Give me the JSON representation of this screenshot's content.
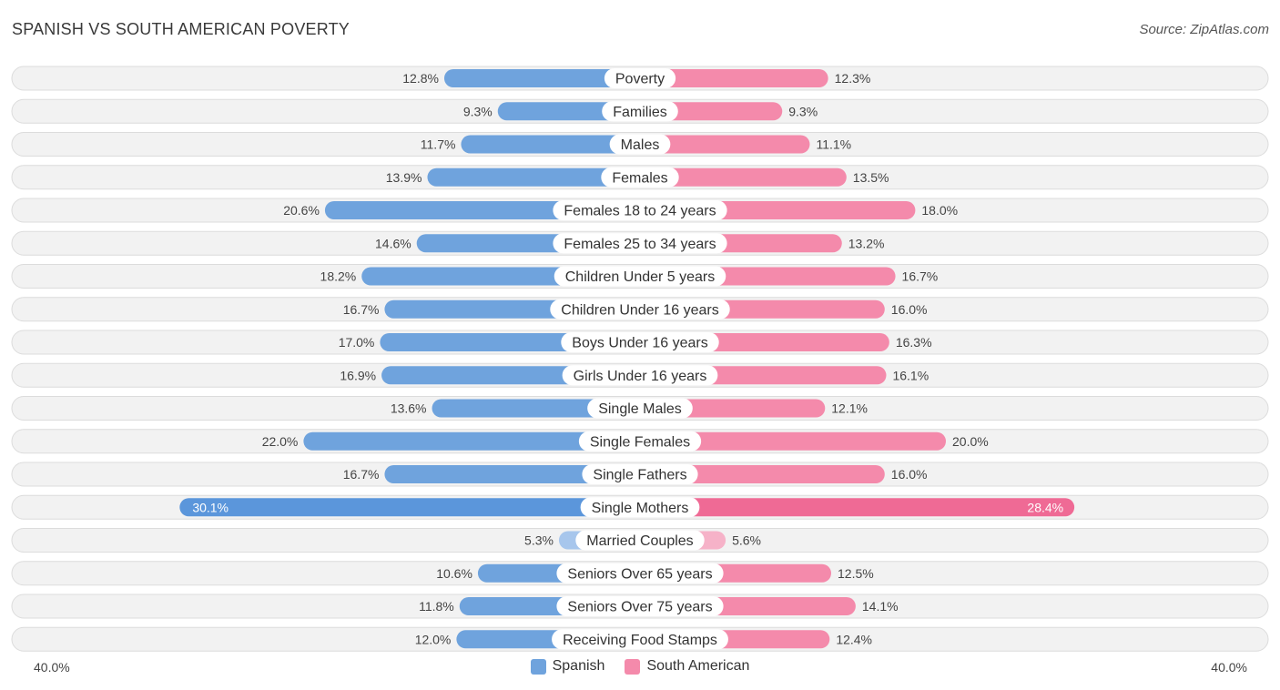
{
  "title": "SPANISH VS SOUTH AMERICAN POVERTY",
  "source": "Source: ZipAtlas.com",
  "colors": {
    "spanish": "#6fa3dd",
    "spanish_light": "#a7c6ec",
    "spanish_strong": "#5b96db",
    "south_american": "#f48aab",
    "south_american_light": "#f6b2c8",
    "south_american_strong": "#ef6a95"
  },
  "legend": {
    "spanish_label": "Spanish",
    "south_american_label": "South American"
  },
  "axis": {
    "left_label": "40.0%",
    "right_label": "40.0%"
  },
  "chart_data": {
    "type": "bar",
    "orientation": "horizontal-diverging",
    "title": "SPANISH VS SOUTH AMERICAN POVERTY",
    "xlim": [
      0,
      40
    ],
    "legend_position": "bottom-center",
    "categories": [
      "Poverty",
      "Families",
      "Males",
      "Females",
      "Females 18 to 24 years",
      "Females 25 to 34 years",
      "Children Under 5 years",
      "Children Under 16 years",
      "Boys Under 16 years",
      "Girls Under 16 years",
      "Single Males",
      "Single Females",
      "Single Fathers",
      "Single Mothers",
      "Married Couples",
      "Seniors Over 65 years",
      "Seniors Over 75 years",
      "Receiving Food Stamps"
    ],
    "series": [
      {
        "name": "Spanish",
        "values": [
          12.8,
          9.3,
          11.7,
          13.9,
          20.6,
          14.6,
          18.2,
          16.7,
          17.0,
          16.9,
          13.6,
          22.0,
          16.7,
          30.1,
          5.3,
          10.6,
          11.8,
          12.0
        ],
        "labels": [
          "12.8%",
          "9.3%",
          "11.7%",
          "13.9%",
          "20.6%",
          "14.6%",
          "18.2%",
          "16.7%",
          "17.0%",
          "16.9%",
          "13.6%",
          "22.0%",
          "16.7%",
          "30.1%",
          "5.3%",
          "10.6%",
          "11.8%",
          "12.0%"
        ]
      },
      {
        "name": "South American",
        "values": [
          12.3,
          9.3,
          11.1,
          13.5,
          18.0,
          13.2,
          16.7,
          16.0,
          16.3,
          16.1,
          12.1,
          20.0,
          16.0,
          28.4,
          5.6,
          12.5,
          14.1,
          12.4
        ],
        "labels": [
          "12.3%",
          "9.3%",
          "11.1%",
          "13.5%",
          "18.0%",
          "13.2%",
          "16.7%",
          "16.0%",
          "16.3%",
          "16.1%",
          "12.1%",
          "20.0%",
          "16.0%",
          "28.4%",
          "5.6%",
          "12.5%",
          "14.1%",
          "12.4%"
        ]
      }
    ]
  }
}
